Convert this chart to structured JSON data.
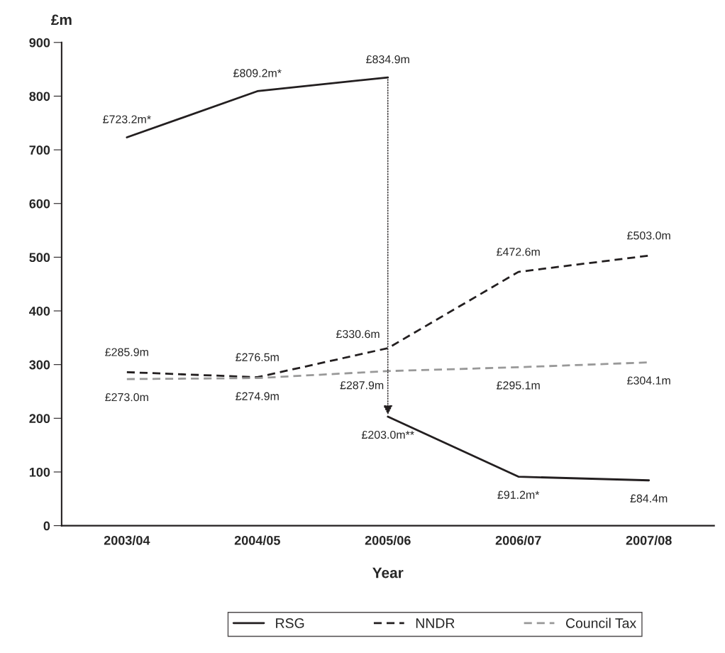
{
  "chart_data": {
    "type": "line",
    "ylabel": "£m",
    "xlabel": "Year",
    "categories": [
      "2003/04",
      "2004/05",
      "2005/06",
      "2006/07",
      "2007/08"
    ],
    "ylim": [
      0,
      900
    ],
    "yticks": [
      0,
      100,
      200,
      300,
      400,
      500,
      600,
      700,
      800,
      900
    ],
    "grid": false,
    "legend": "bottom",
    "marker": "none",
    "series": [
      {
        "name": "RSG",
        "color": "#231f20",
        "line_style": "solid",
        "values": [
          723.2,
          809.2,
          834.9,
          null,
          null
        ],
        "value_labels": [
          "£723.2m*",
          "£809.2m*",
          "£834.9m",
          null,
          null
        ]
      },
      {
        "color": "#231f20",
        "line_style": "solid",
        "values": [
          null,
          null,
          203.0,
          91.2,
          84.4
        ],
        "value_labels": [
          null,
          null,
          "£203.0m**",
          "£91.2m*",
          "£84.4m"
        ]
      },
      {
        "name": "NNDR",
        "color": "#231f20",
        "line_style": "dashed",
        "values": [
          285.9,
          276.5,
          330.6,
          472.6,
          503.0
        ],
        "value_labels": [
          "£285.9m",
          "£276.5m",
          "£330.6m",
          "£472.6m",
          "£503.0m"
        ]
      },
      {
        "name": "Council Tax",
        "color": "#999999",
        "line_style": "dashed",
        "values": [
          273.0,
          274.9,
          287.9,
          295.1,
          304.1
        ],
        "value_labels": [
          "£273.0m",
          "£274.9m",
          "£287.9m",
          "£295.1m",
          "£304.1m"
        ]
      }
    ]
  }
}
